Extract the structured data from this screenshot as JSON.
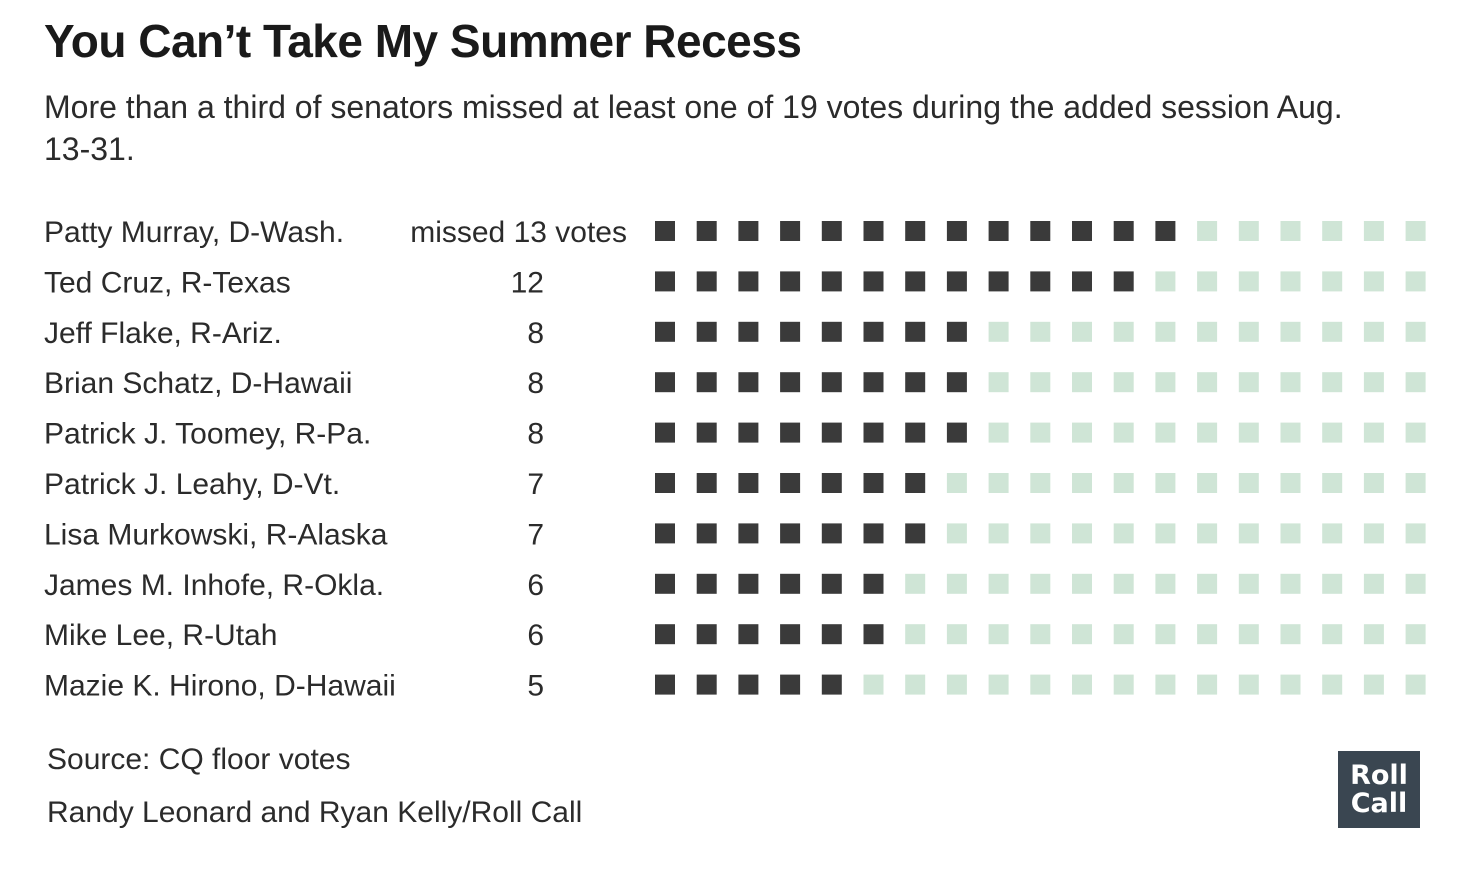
{
  "title": "You Can’t Take My Summer Recess",
  "subtitle": "More than a third of senators missed at least one of 19 votes during the added session Aug. 13-31.",
  "footer": {
    "source": "Source: CQ floor votes",
    "credit": "Randy Leonard and Ryan Kelly/Roll Call"
  },
  "logo": {
    "line1": "Roll",
    "line2": "Call"
  },
  "colors": {
    "missed": "#3a3a3a",
    "attended": "#cfe5d6",
    "logo_bg": "#3a4651"
  },
  "chart_data": {
    "type": "waffle",
    "total_votes": 19,
    "first_row_prefix": "missed",
    "first_row_suffix": "votes",
    "rows": [
      {
        "name": "Patty Murray, D-Wash.",
        "missed": 13
      },
      {
        "name": "Ted Cruz, R-Texas",
        "missed": 12
      },
      {
        "name": "Jeff Flake, R-Ariz.",
        "missed": 8
      },
      {
        "name": "Brian Schatz, D-Hawaii",
        "missed": 8
      },
      {
        "name": "Patrick J. Toomey, R-Pa.",
        "missed": 8
      },
      {
        "name": "Patrick J. Leahy, D-Vt.",
        "missed": 7
      },
      {
        "name": "Lisa Murkowski, R-Alaska",
        "missed": 7
      },
      {
        "name": "James M. Inhofe, R-Okla.",
        "missed": 6
      },
      {
        "name": "Mike Lee, R-Utah",
        "missed": 6
      },
      {
        "name": "Mazie K. Hirono, D-Hawaii",
        "missed": 5
      }
    ]
  }
}
